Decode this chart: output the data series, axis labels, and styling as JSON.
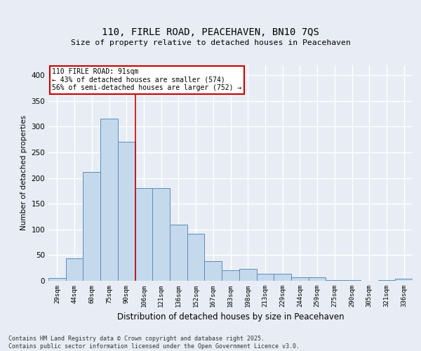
{
  "title_line1": "110, FIRLE ROAD, PEACEHAVEN, BN10 7QS",
  "title_line2": "Size of property relative to detached houses in Peacehaven",
  "xlabel": "Distribution of detached houses by size in Peacehaven",
  "ylabel": "Number of detached properties",
  "categories": [
    "29sqm",
    "44sqm",
    "60sqm",
    "75sqm",
    "90sqm",
    "106sqm",
    "121sqm",
    "136sqm",
    "152sqm",
    "167sqm",
    "183sqm",
    "198sqm",
    "213sqm",
    "229sqm",
    "244sqm",
    "259sqm",
    "275sqm",
    "290sqm",
    "305sqm",
    "321sqm",
    "336sqm"
  ],
  "values": [
    5,
    44,
    212,
    315,
    271,
    180,
    180,
    109,
    91,
    38,
    20,
    23,
    14,
    13,
    7,
    7,
    2,
    1,
    0,
    2,
    4
  ],
  "bar_color": "#c5d9ed",
  "bar_edge_color": "#5b8db8",
  "annotation_text": "110 FIRLE ROAD: 91sqm\n← 43% of detached houses are smaller (574)\n56% of semi-detached houses are larger (752) →",
  "annotation_box_color": "white",
  "annotation_box_edge_color": "#cc0000",
  "vline_color": "#cc0000",
  "vline_position": 4.5,
  "background_color": "#e8edf5",
  "plot_bg_color": "#e8edf5",
  "grid_color": "white",
  "footer_text": "Contains HM Land Registry data © Crown copyright and database right 2025.\nContains public sector information licensed under the Open Government Licence v3.0.",
  "ylim": [
    0,
    420
  ],
  "yticks": [
    0,
    50,
    100,
    150,
    200,
    250,
    300,
    350,
    400
  ]
}
